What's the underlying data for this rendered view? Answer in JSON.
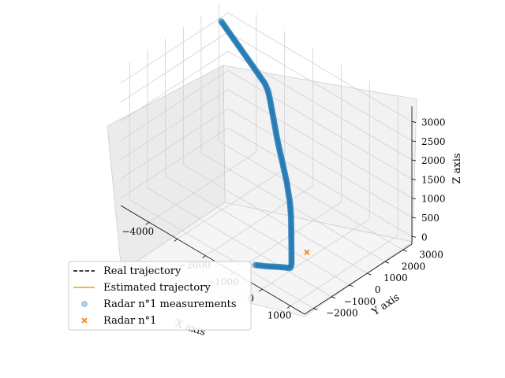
{
  "chart_data": {
    "type": "scatter",
    "projection": "3d",
    "title": "",
    "xlabel": "X axis",
    "ylabel": "Y axis",
    "zlabel": "Z axis",
    "x_ticks": [
      -4000,
      -3000,
      -2000,
      -1000,
      0,
      1000
    ],
    "x_tick_labels": [
      "−4000",
      "",
      "−2000",
      "−1000",
      "0",
      "1000"
    ],
    "y_ticks": [
      -2000,
      -1000,
      0,
      1000,
      2000,
      3000
    ],
    "y_tick_labels": [
      "−2000",
      "−1000",
      "0",
      "1000",
      "2000",
      "3000"
    ],
    "z_ticks": [
      0,
      500,
      1000,
      1500,
      2000,
      2500,
      3000
    ],
    "z_tick_labels": [
      "0",
      "500",
      "1000",
      "1500",
      "2000",
      "2500",
      "3000"
    ],
    "grid": true,
    "legend_position": "lower-left",
    "legend": [
      {
        "label": "Real trajectory",
        "style": "dashed-line",
        "color": "#000000"
      },
      {
        "label": "Estimated trajectory",
        "style": "line",
        "color": "#ff9900"
      },
      {
        "label": "Radar n°1 measurements",
        "style": "marker-circle",
        "color": "#1f77b4"
      },
      {
        "label": "Radar n°1",
        "style": "marker-x",
        "color": "#ff7f0e"
      }
    ],
    "series": [
      {
        "name": "Radar n°1 measurements",
        "color": "#1f77b4",
        "points": [
          {
            "x": -4900,
            "y": 2950,
            "z": 3000
          },
          {
            "x": -3950,
            "y": 2350,
            "z": 3000
          },
          {
            "x": -3000,
            "y": 1750,
            "z": 3000
          },
          {
            "x": -2300,
            "y": 1300,
            "z": 3000
          },
          {
            "x": -2100,
            "y": 1150,
            "z": 2950
          },
          {
            "x": -1900,
            "y": 950,
            "z": 2850
          },
          {
            "x": -1100,
            "y": 100,
            "z": 2400
          },
          {
            "x": -300,
            "y": -650,
            "z": 1900
          },
          {
            "x": 0,
            "y": -950,
            "z": 1600
          },
          {
            "x": 100,
            "y": -1050,
            "z": 1350
          },
          {
            "x": 130,
            "y": -1080,
            "z": 1000
          },
          {
            "x": 150,
            "y": -1100,
            "z": 500
          },
          {
            "x": 160,
            "y": -1110,
            "z": 80
          },
          {
            "x": 140,
            "y": -1150,
            "z": 0
          },
          {
            "x": -100,
            "y": -1400,
            "z": 0
          },
          {
            "x": -350,
            "y": -1700,
            "z": 0
          },
          {
            "x": -600,
            "y": -1950,
            "z": 0
          }
        ]
      }
    ],
    "radar": {
      "name": "Radar n°1",
      "x": 0,
      "y": 0,
      "z": 0,
      "color": "#ff7f0e"
    }
  }
}
